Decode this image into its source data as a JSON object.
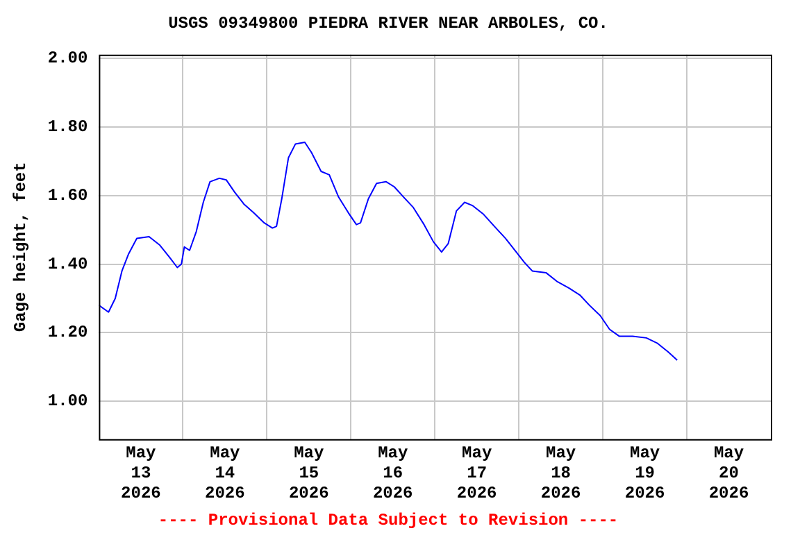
{
  "chart_data": {
    "type": "line",
    "title": "USGS 09349800 PIEDRA RIVER NEAR ARBOLES, CO.",
    "ylabel": "Gage height, feet",
    "annotations": [
      "---- Provisional Data Subject to Revision ----"
    ],
    "x": [
      "2026-05-13T00:00",
      "2026-05-13T02:45",
      "2026-05-13T04:40",
      "2026-05-13T06:35",
      "2026-05-13T08:30",
      "2026-05-13T10:50",
      "2026-05-13T14:20",
      "2026-05-13T17:25",
      "2026-05-13T20:10",
      "2026-05-13T22:25",
      "2026-05-13T23:35",
      "2026-05-14T00:25",
      "2026-05-14T01:55",
      "2026-05-14T03:50",
      "2026-05-14T05:50",
      "2026-05-14T07:45",
      "2026-05-14T10:25",
      "2026-05-14T12:25",
      "2026-05-14T14:45",
      "2026-05-14T17:25",
      "2026-05-14T20:10",
      "2026-05-14T23:15",
      "2026-05-15T01:35",
      "2026-05-15T02:45",
      "2026-05-15T04:15",
      "2026-05-15T06:10",
      "2026-05-15T08:10",
      "2026-05-15T10:50",
      "2026-05-15T12:45",
      "2026-05-15T15:30",
      "2026-05-15T17:50",
      "2026-05-15T20:30",
      "2026-05-15T23:15",
      "2026-05-16T01:35",
      "2026-05-16T02:45",
      "2026-05-16T05:00",
      "2026-05-16T07:20",
      "2026-05-16T10:05",
      "2026-05-16T12:25",
      "2026-05-16T15:05",
      "2026-05-16T17:50",
      "2026-05-16T20:55",
      "2026-05-16T23:35",
      "2026-05-17T01:55",
      "2026-05-17T03:50",
      "2026-05-17T06:10",
      "2026-05-17T08:30",
      "2026-05-17T10:50",
      "2026-05-17T13:55",
      "2026-05-17T17:00",
      "2026-05-17T20:10",
      "2026-05-17T23:15",
      "2026-05-18T01:35",
      "2026-05-18T03:50",
      "2026-05-18T07:45",
      "2026-05-18T10:50",
      "2026-05-18T14:20",
      "2026-05-18T17:25",
      "2026-05-18T20:10",
      "2026-05-18T23:15",
      "2026-05-19T01:55",
      "2026-05-19T04:40",
      "2026-05-19T08:30",
      "2026-05-19T12:25",
      "2026-05-19T15:30",
      "2026-05-19T18:35",
      "2026-05-19T21:15"
    ],
    "series": [
      {
        "color": "#0000ff",
        "values": [
          1.28,
          1.26,
          1.3,
          1.38,
          1.43,
          1.475,
          1.48,
          1.455,
          1.42,
          1.39,
          1.4,
          1.45,
          1.44,
          1.495,
          1.58,
          1.64,
          1.65,
          1.645,
          1.61,
          1.575,
          1.55,
          1.52,
          1.505,
          1.51,
          1.59,
          1.71,
          1.75,
          1.755,
          1.725,
          1.67,
          1.66,
          1.595,
          1.55,
          1.515,
          1.52,
          1.59,
          1.635,
          1.64,
          1.625,
          1.595,
          1.565,
          1.515,
          1.465,
          1.435,
          1.46,
          1.555,
          1.58,
          1.57,
          1.545,
          1.51,
          1.475,
          1.435,
          1.405,
          1.38,
          1.375,
          1.35,
          1.33,
          1.31,
          1.28,
          1.25,
          1.21,
          1.19,
          1.19,
          1.185,
          1.17,
          1.145,
          1.12
        ]
      }
    ],
    "xlim": [
      "2026-05-13T00:00",
      "2026-05-21T00:00"
    ],
    "xticks": [
      {
        "value": "2026-05-13T12:00",
        "label": "May\n13\n2026"
      },
      {
        "value": "2026-05-14T00:00",
        "label": null
      },
      {
        "value": "2026-05-14T12:00",
        "label": "May\n14\n2026"
      },
      {
        "value": "2026-05-15T00:00",
        "label": null
      },
      {
        "value": "2026-05-15T12:00",
        "label": "May\n15\n2026"
      },
      {
        "value": "2026-05-16T00:00",
        "label": null
      },
      {
        "value": "2026-05-16T12:00",
        "label": "May\n16\n2026"
      },
      {
        "value": "2026-05-17T00:00",
        "label": null
      },
      {
        "value": "2026-05-17T12:00",
        "label": "May\n17\n2026"
      },
      {
        "value": "2026-05-18T00:00",
        "label": null
      },
      {
        "value": "2026-05-18T12:00",
        "label": "May\n18\n2026"
      },
      {
        "value": "2026-05-19T00:00",
        "label": null
      },
      {
        "value": "2026-05-19T12:00",
        "label": "May\n19\n2026"
      },
      {
        "value": "2026-05-20T00:00",
        "label": null
      },
      {
        "value": "2026-05-20T12:00",
        "label": "May\n20\n2026"
      }
    ],
    "ylim": [
      0.89,
      2.01
    ],
    "yticks": [
      {
        "value": 1,
        "label": "1.00"
      },
      {
        "value": 1.2,
        "label": "1.20"
      },
      {
        "value": 1.4,
        "label": "1.40"
      },
      {
        "value": 1.6,
        "label": "1.60"
      },
      {
        "value": 1.8,
        "label": "1.80"
      },
      {
        "value": 2,
        "label": "2.00"
      }
    ],
    "grid": true,
    "legend": false,
    "marker": "none",
    "line_style": "solid"
  }
}
